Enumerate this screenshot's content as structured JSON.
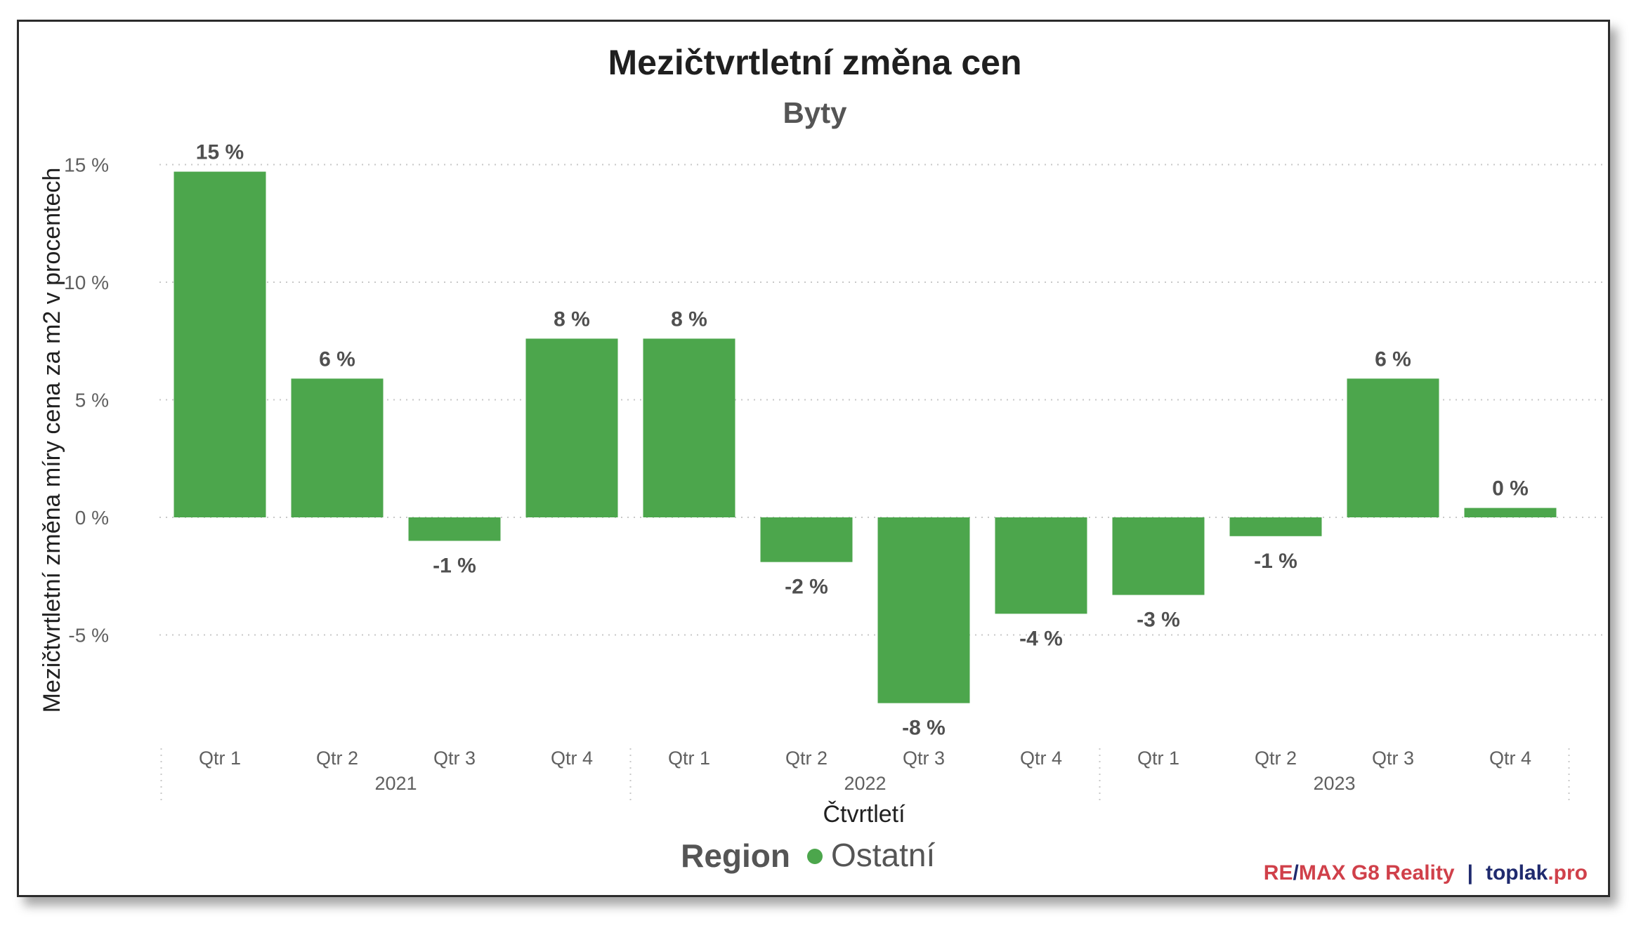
{
  "chart_data": {
    "type": "bar",
    "title": "Mezičtvrtletní změna cen",
    "subtitle": "Byty",
    "ylabel": "Mezičtvrtletní změna míry cena za m2 v procentech",
    "xlabel": "Čtvrtletí",
    "ylim": [
      -9.5,
      16.5
    ],
    "yticks": [
      15,
      10,
      5,
      0,
      -5
    ],
    "ytick_labels": [
      "15 %",
      "10 %",
      "5 %",
      "0 %",
      "-5 %"
    ],
    "grid": true,
    "categories": [
      "Qtr 1",
      "Qtr 2",
      "Qtr 3",
      "Qtr 4",
      "Qtr 1",
      "Qtr 2",
      "Qtr 3",
      "Qtr 4",
      "Qtr 1",
      "Qtr 2",
      "Qtr 3",
      "Qtr 4"
    ],
    "groups": [
      {
        "label": "2021",
        "count": 4
      },
      {
        "label": "2022",
        "count": 4
      },
      {
        "label": "2023",
        "count": 4
      }
    ],
    "series": [
      {
        "name": "Ostatní",
        "color": "#4ca64c",
        "values": [
          14.7,
          5.9,
          -1.0,
          7.6,
          7.6,
          -1.9,
          -7.9,
          -4.1,
          -3.3,
          -0.8,
          5.9,
          0.4
        ],
        "labels": [
          "15 %",
          "6 %",
          "-1 %",
          "8 %",
          "8 %",
          "-2 %",
          "-8 %",
          "-4 %",
          "-3 %",
          "-1 %",
          "6 %",
          "0 %"
        ]
      }
    ],
    "legend": {
      "title": "Region",
      "position": "bottom-center"
    }
  },
  "credit": {
    "re": "RE",
    "slash": "/",
    "max": "MAX G8 Reality",
    "sep": "|",
    "toplak": "toplak",
    "pro": ".pro",
    "red": "#d0404a",
    "navy": "#1f2a6e"
  }
}
